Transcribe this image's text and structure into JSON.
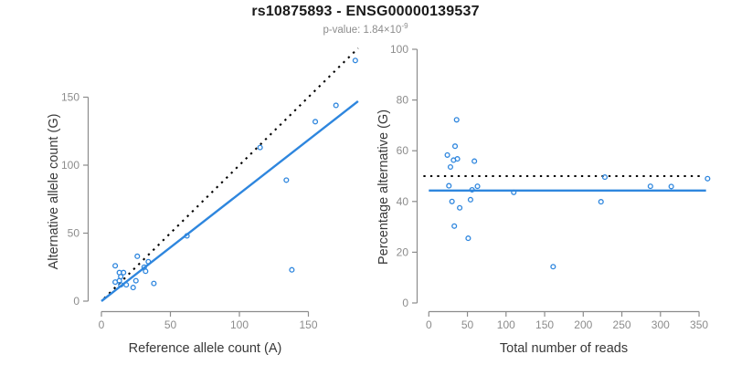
{
  "header": {
    "title": "rs10875893 - ENSG00000139537",
    "p_label": "p-value: ",
    "p_base": "1.84×10",
    "p_exponent": "-9"
  },
  "colors": {
    "blue": "#2e86de",
    "dotted_black": "#000000",
    "axis_gray": "#8c8c8c",
    "tick_label_gray": "#8c8c8c",
    "title_black": "#1a1a1a",
    "subtitle_gray": "#8c8c8c",
    "background": "#ffffff"
  },
  "chart_data": [
    {
      "type": "scatter",
      "panel": "left",
      "xlabel": "Reference allele count (A)",
      "ylabel": "Alternative allele count (G)",
      "xticks": [
        0,
        50,
        100,
        150
      ],
      "yticks": [
        0,
        50,
        100,
        150
      ],
      "xlim": [
        0,
        190
      ],
      "ylim": [
        0,
        190
      ],
      "points": [
        [
          10,
          26
        ],
        [
          13,
          21
        ],
        [
          10,
          14
        ],
        [
          16,
          21
        ],
        [
          26,
          33
        ],
        [
          14,
          18
        ],
        [
          13,
          15
        ],
        [
          14,
          12
        ],
        [
          34,
          29
        ],
        [
          31,
          25
        ],
        [
          32,
          22
        ],
        [
          18,
          12
        ],
        [
          25,
          15
        ],
        [
          23,
          10
        ],
        [
          38,
          13
        ],
        [
          62,
          48
        ],
        [
          138,
          23
        ],
        [
          134,
          89
        ],
        [
          115,
          113
        ],
        [
          155,
          132
        ],
        [
          170,
          144
        ],
        [
          184,
          177
        ]
      ],
      "lines": [
        {
          "name": "identity-line",
          "style": "dotted",
          "color": "#000000",
          "x1": 2,
          "y1": 2,
          "x2": 186,
          "y2": 186
        },
        {
          "name": "fit-line",
          "style": "solid",
          "color": "#2e86de",
          "x1": 0,
          "y1": 0,
          "x2": 186,
          "y2": 147
        }
      ]
    },
    {
      "type": "scatter",
      "panel": "right",
      "xlabel": "Total number of reads",
      "ylabel": "Percentage alternative (G)",
      "xticks": [
        0,
        50,
        100,
        150,
        200,
        250,
        300,
        350
      ],
      "yticks": [
        0,
        20,
        40,
        60,
        80,
        100
      ],
      "xlim": [
        0,
        375
      ],
      "ylim": [
        0,
        100
      ],
      "points": [
        [
          36,
          72.2
        ],
        [
          34,
          61.8
        ],
        [
          24,
          58.3
        ],
        [
          37,
          56.8
        ],
        [
          59,
          55.9
        ],
        [
          32,
          56.3
        ],
        [
          28,
          53.6
        ],
        [
          26,
          46.2
        ],
        [
          63,
          46.0
        ],
        [
          56,
          44.6
        ],
        [
          54,
          40.7
        ],
        [
          30,
          40.0
        ],
        [
          40,
          37.5
        ],
        [
          33,
          30.3
        ],
        [
          51,
          25.5
        ],
        [
          110,
          43.6
        ],
        [
          161,
          14.3
        ],
        [
          223,
          39.9
        ],
        [
          228,
          49.6
        ],
        [
          287,
          46.0
        ],
        [
          314,
          45.9
        ],
        [
          361,
          49.0
        ]
      ],
      "lines": [
        {
          "name": "expected-50pct-line",
          "style": "dotted",
          "color": "#000000",
          "x1": -7,
          "y1": 50,
          "x2": 352,
          "y2": 50
        },
        {
          "name": "mean-percentage-line",
          "style": "solid",
          "color": "#2e86de",
          "x1": 0,
          "y1": 44.3,
          "x2": 359,
          "y2": 44.3
        }
      ]
    }
  ]
}
